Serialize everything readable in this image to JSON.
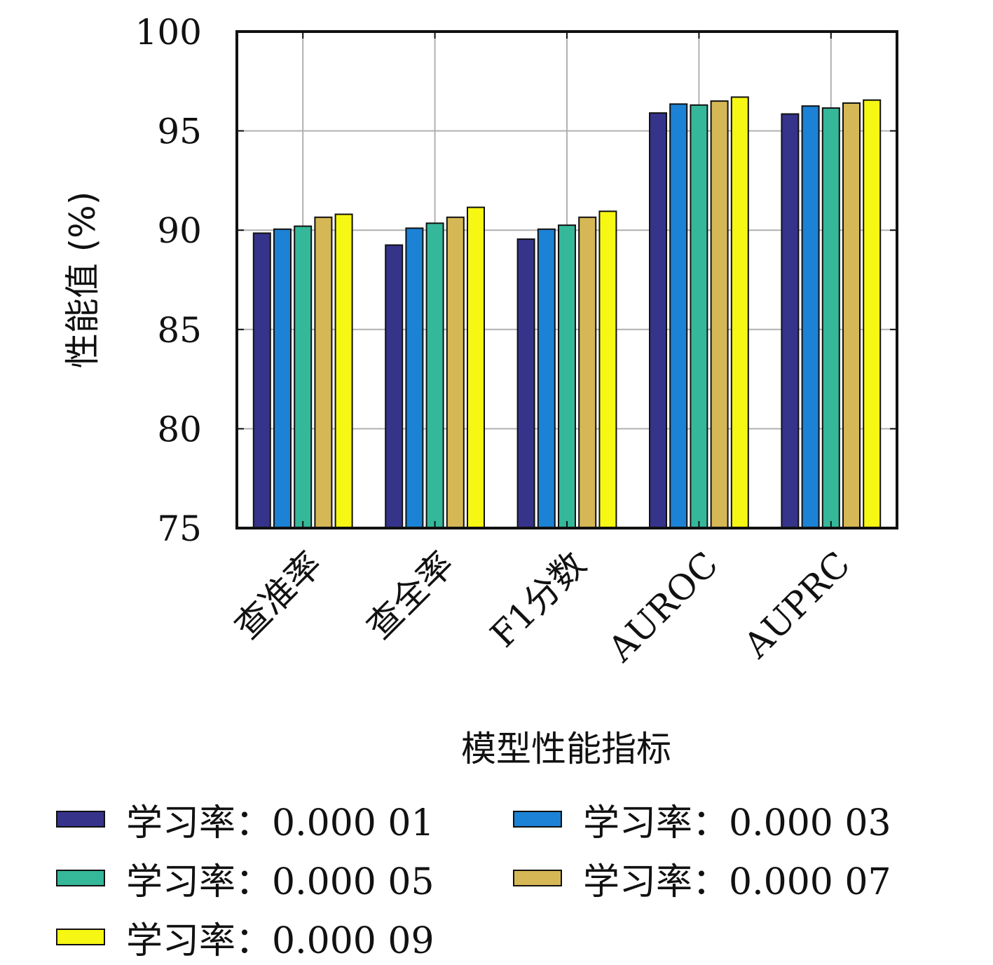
{
  "chart_data": {
    "type": "bar",
    "title": "",
    "xlabel": "模型性能指标",
    "ylabel": "性能值 (%)",
    "ylim": [
      75,
      100
    ],
    "yticks": [
      "75",
      "80",
      "85",
      "90",
      "95",
      "100"
    ],
    "grid": true,
    "legend_position": "bottom",
    "categories": [
      "查准率",
      "查全率",
      "F1分数",
      "AUROC",
      "AUPRC"
    ],
    "series": [
      {
        "name": "学习率：0.000 01",
        "color": "#35338a",
        "values": [
          89.85,
          89.25,
          89.55,
          95.9,
          95.85
        ]
      },
      {
        "name": "学习率：0.000 03",
        "color": "#1b82d6",
        "values": [
          90.05,
          90.1,
          90.05,
          96.35,
          96.25
        ]
      },
      {
        "name": "学习率：0.000 05",
        "color": "#35b79a",
        "values": [
          90.2,
          90.35,
          90.25,
          96.3,
          96.15
        ]
      },
      {
        "name": "学习率：0.000 07",
        "color": "#d6b755",
        "values": [
          90.65,
          90.65,
          90.65,
          96.5,
          96.4
        ]
      },
      {
        "name": "学习率：0.000 09",
        "color": "#f7f714",
        "values": [
          90.8,
          91.15,
          90.95,
          96.7,
          96.55
        ]
      }
    ]
  }
}
